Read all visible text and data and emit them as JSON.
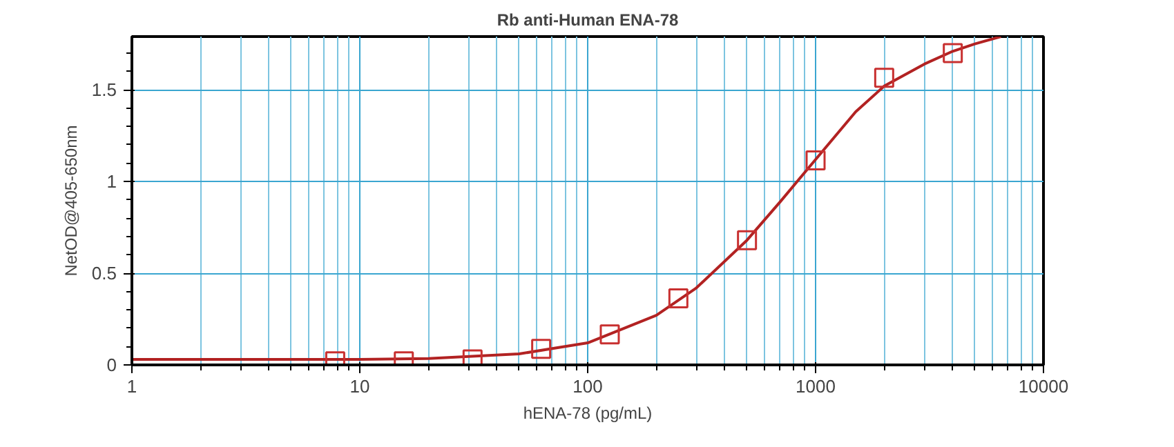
{
  "chart_data": {
    "type": "scatter",
    "title": "Rb anti-Human ENA-78",
    "xlabel": "hENA-78 (pg/mL)",
    "ylabel": "NetOD@405-650nm",
    "log": "x",
    "grid": true,
    "xlim": [
      1,
      10000
    ],
    "xticks": [
      1,
      {
        "value": 2,
        "label": null
      },
      {
        "value": 3,
        "label": null
      },
      {
        "value": 4,
        "label": null
      },
      {
        "value": 5,
        "label": null
      },
      {
        "value": 6,
        "label": null
      },
      {
        "value": 7,
        "label": null
      },
      {
        "value": 8,
        "label": null
      },
      {
        "value": 9,
        "label": null
      },
      10,
      {
        "value": 20,
        "label": null
      },
      {
        "value": 30,
        "label": null
      },
      {
        "value": 40,
        "label": null
      },
      {
        "value": 50,
        "label": null
      },
      {
        "value": 60,
        "label": null
      },
      {
        "value": 70,
        "label": null
      },
      {
        "value": 80,
        "label": null
      },
      {
        "value": 90,
        "label": null
      },
      100,
      {
        "value": 200,
        "label": null
      },
      {
        "value": 300,
        "label": null
      },
      {
        "value": 400,
        "label": null
      },
      {
        "value": 500,
        "label": null
      },
      {
        "value": 600,
        "label": null
      },
      {
        "value": 700,
        "label": null
      },
      {
        "value": 800,
        "label": null
      },
      {
        "value": 900,
        "label": null
      },
      1000,
      {
        "value": 2000,
        "label": null
      },
      {
        "value": 3000,
        "label": null
      },
      {
        "value": 4000,
        "label": null
      },
      {
        "value": 5000,
        "label": null
      },
      {
        "value": 6000,
        "label": null
      },
      {
        "value": 7000,
        "label": null
      },
      {
        "value": 8000,
        "label": null
      },
      {
        "value": 9000,
        "label": null
      },
      10000
    ],
    "ylim": [
      0,
      1.79
    ],
    "yticks": [
      0,
      0.5,
      1,
      1.5
    ],
    "series": [
      {
        "type": "line",
        "color": "#b22222",
        "marker": "none",
        "line_style": "solid",
        "x": [
          1,
          10,
          20,
          50,
          100,
          200,
          300,
          500,
          700,
          1000,
          1500,
          2000,
          3000,
          4000,
          5000,
          6500
        ],
        "values": [
          0.03,
          0.03,
          0.035,
          0.06,
          0.12,
          0.27,
          0.42,
          0.68,
          0.89,
          1.12,
          1.38,
          1.52,
          1.64,
          1.71,
          1.75,
          1.79
        ]
      },
      {
        "color": "#c83030",
        "marker": "square",
        "x": [
          7.8,
          15.6,
          31.25,
          62.5,
          125,
          250,
          500,
          1000,
          2000,
          4000
        ],
        "values": [
          0.02,
          0.02,
          0.03,
          0.087,
          0.166,
          0.363,
          0.68,
          1.115,
          1.565,
          1.7
        ]
      }
    ]
  }
}
